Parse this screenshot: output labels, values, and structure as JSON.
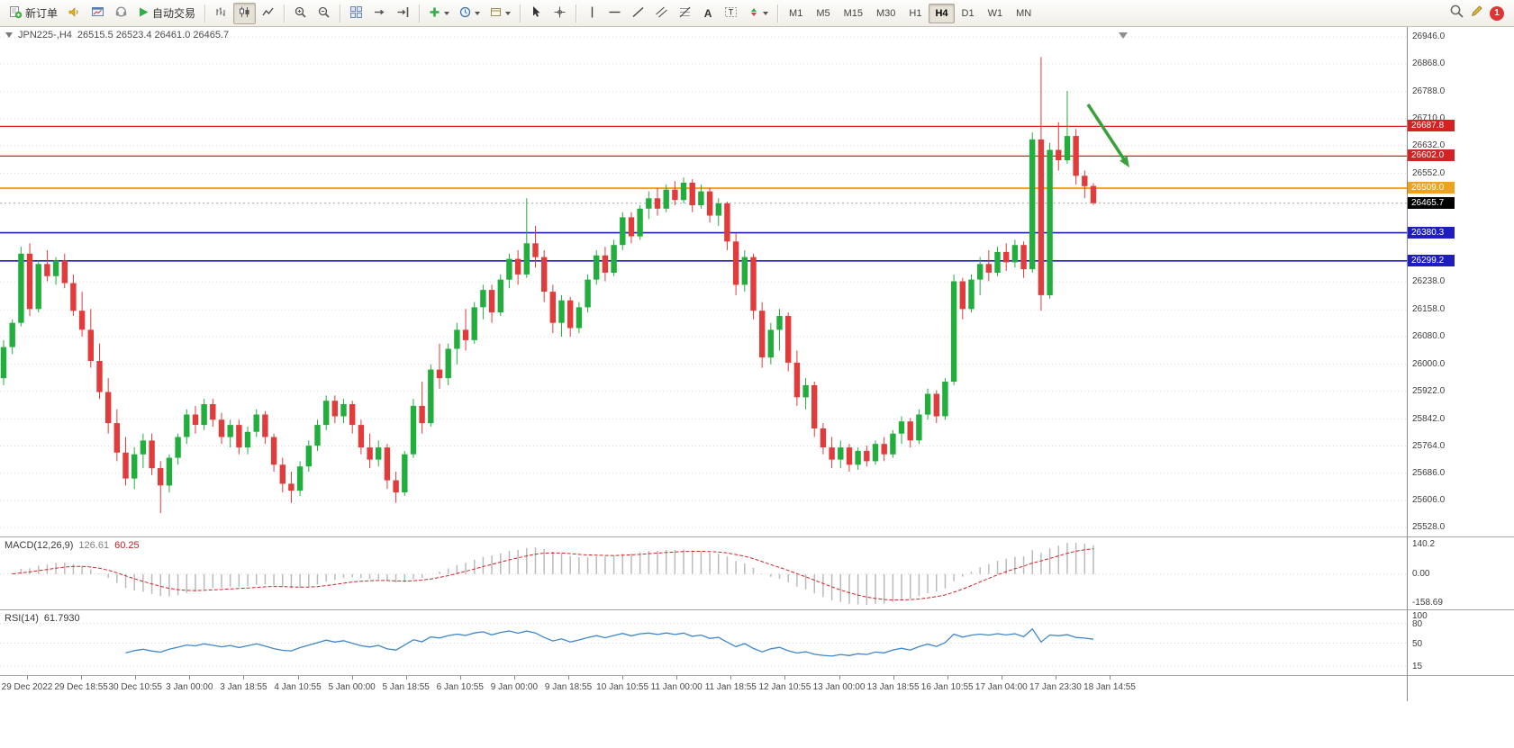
{
  "toolbar": {
    "new_order_label": "新订单",
    "auto_trading_label": "自动交易",
    "timeframes": [
      "M1",
      "M5",
      "M15",
      "M30",
      "H1",
      "H4",
      "D1",
      "W1",
      "MN"
    ],
    "active_timeframe": "H4",
    "notification_count": "1",
    "icon_names": [
      "new-order-icon",
      "alerts-icon",
      "market-watch-icon",
      "community-icon",
      "auto-trading-icon",
      "bar-chart-icon",
      "candlestick-icon",
      "line-chart-icon",
      "zoom-in-icon",
      "zoom-out-icon",
      "tile-windows-icon",
      "auto-scroll-icon",
      "chart-shift-icon",
      "indicators-icon",
      "periods-icon",
      "templates-icon",
      "cursor-icon",
      "crosshair-icon",
      "vertical-line-icon",
      "horizontal-line-icon",
      "trendline-icon",
      "channel-icon",
      "fibonacci-icon",
      "text-icon",
      "text-label-icon",
      "arrows-icon",
      "search-icon",
      "pencil-icon"
    ]
  },
  "chart": {
    "title_symbol": "JPN225-,H4",
    "title_ohlc": "26515.5 26523.4 26461.0 26465.7"
  },
  "macd": {
    "title": "MACD(12,26,9)",
    "value_main": "126.61",
    "value_signal": "60.25",
    "axis": [
      "140.2",
      "0.00",
      "-158.69"
    ]
  },
  "rsi": {
    "title": "RSI(14)",
    "value": "61.7930",
    "axis_values": [
      100,
      80,
      50,
      15
    ]
  },
  "colors": {
    "up": "#22ae3c",
    "down": "#e23b3b",
    "level_red": "#d42121",
    "level_orange": "#f0a11e",
    "level_blue": "#1d1dc0",
    "current_tag": "#000000",
    "macd_bars": "#bbbbbb",
    "macd_signal": "#d42222",
    "rsi_line": "#3f87c9",
    "arrow": "#3aa03a",
    "grid": "#dadada"
  },
  "chart_data": {
    "type": "candlestick",
    "symbol": "JPN225-",
    "timeframe": "H4",
    "current_bar": {
      "open": 26515.5,
      "high": 26523.4,
      "low": 26461.0,
      "close": 26465.7
    },
    "current_price": 26465.7,
    "y_ticks": [
      26946.0,
      26868.0,
      26788.0,
      26710.0,
      26632.0,
      26552.0,
      26238.0,
      26158.0,
      26080.0,
      26000.0,
      25922.0,
      25842.0,
      25764.0,
      25686.0,
      25606.0,
      25528.0
    ],
    "levels": [
      {
        "price": 26687.8,
        "color": "#d42121",
        "width": 1.2
      },
      {
        "price": 26602.0,
        "color": "#d42121",
        "width": 1.2
      },
      {
        "price": 26509.0,
        "color": "#f0a11e",
        "width": 2
      },
      {
        "price": 26380.3,
        "color": "#1d1dc0",
        "width": 1.6
      },
      {
        "price": 26299.2,
        "color": "#1d1dc0",
        "width": 1.6
      }
    ],
    "x_labels": [
      "29 Dec 2022",
      "29 Dec 18:55",
      "30 Dec 10:55",
      "3 Jan 00:00",
      "3 Jan 18:55",
      "4 Jan 10:55",
      "5 Jan 00:00",
      "5 Jan 18:55",
      "6 Jan 10:55",
      "9 Jan 00:00",
      "9 Jan 18:55",
      "10 Jan 10:55",
      "11 Jan 00:00",
      "11 Jan 18:55",
      "12 Jan 10:55",
      "13 Jan 00:00",
      "13 Jan 18:55",
      "16 Jan 10:55",
      "17 Jan 04:00",
      "17 Jan 23:30",
      "18 Jan 14:55"
    ],
    "candles": [
      [
        25960,
        26070,
        25940,
        26050
      ],
      [
        26050,
        26130,
        26030,
        26120
      ],
      [
        26120,
        26340,
        26110,
        26320
      ],
      [
        26320,
        26350,
        26140,
        26160
      ],
      [
        26160,
        26300,
        26150,
        26290
      ],
      [
        26290,
        26330,
        26240,
        26255
      ],
      [
        26255,
        26310,
        26230,
        26300
      ],
      [
        26300,
        26320,
        26220,
        26235
      ],
      [
        26235,
        26260,
        26140,
        26155
      ],
      [
        26155,
        26210,
        26080,
        26100
      ],
      [
        26100,
        26160,
        25990,
        26010
      ],
      [
        26010,
        26060,
        25900,
        25920
      ],
      [
        25920,
        25960,
        25800,
        25830
      ],
      [
        25830,
        25870,
        25720,
        25745
      ],
      [
        25745,
        25790,
        25650,
        25670
      ],
      [
        25670,
        25760,
        25640,
        25740
      ],
      [
        25740,
        25800,
        25700,
        25780
      ],
      [
        25780,
        25800,
        25680,
        25700
      ],
      [
        25700,
        25720,
        25570,
        25650
      ],
      [
        25650,
        25740,
        25630,
        25730
      ],
      [
        25730,
        25800,
        25710,
        25790
      ],
      [
        25790,
        25870,
        25770,
        25855
      ],
      [
        25855,
        25880,
        25800,
        25825
      ],
      [
        25825,
        25900,
        25810,
        25885
      ],
      [
        25885,
        25900,
        25820,
        25840
      ],
      [
        25840,
        25860,
        25770,
        25790
      ],
      [
        25790,
        25840,
        25760,
        25825
      ],
      [
        25825,
        25840,
        25740,
        25760
      ],
      [
        25760,
        25820,
        25740,
        25805
      ],
      [
        25805,
        25870,
        25790,
        25855
      ],
      [
        25855,
        25865,
        25770,
        25790
      ],
      [
        25790,
        25800,
        25690,
        25710
      ],
      [
        25710,
        25730,
        25630,
        25655
      ],
      [
        25655,
        25690,
        25600,
        25635
      ],
      [
        25635,
        25720,
        25620,
        25705
      ],
      [
        25705,
        25780,
        25690,
        25765
      ],
      [
        25765,
        25840,
        25750,
        25825
      ],
      [
        25825,
        25910,
        25810,
        25895
      ],
      [
        25895,
        25910,
        25830,
        25850
      ],
      [
        25850,
        25900,
        25830,
        25885
      ],
      [
        25885,
        25895,
        25800,
        25825
      ],
      [
        25825,
        25840,
        25740,
        25760
      ],
      [
        25760,
        25800,
        25700,
        25725
      ],
      [
        25725,
        25780,
        25705,
        25760
      ],
      [
        25760,
        25770,
        25640,
        25665
      ],
      [
        25665,
        25690,
        25600,
        25630
      ],
      [
        25630,
        25750,
        25620,
        25740
      ],
      [
        25740,
        25900,
        25730,
        25880
      ],
      [
        25880,
        25950,
        25800,
        25830
      ],
      [
        25830,
        26000,
        25820,
        25985
      ],
      [
        25985,
        26060,
        25930,
        25960
      ],
      [
        25960,
        26060,
        25940,
        26045
      ],
      [
        26045,
        26120,
        26000,
        26100
      ],
      [
        26100,
        26160,
        26040,
        26070
      ],
      [
        26070,
        26180,
        26060,
        26165
      ],
      [
        26165,
        26230,
        26130,
        26215
      ],
      [
        26215,
        26230,
        26120,
        26150
      ],
      [
        26150,
        26260,
        26140,
        26245
      ],
      [
        26245,
        26320,
        26220,
        26305
      ],
      [
        26305,
        26330,
        26230,
        26260
      ],
      [
        26260,
        26480,
        26250,
        26350
      ],
      [
        26350,
        26400,
        26280,
        26310
      ],
      [
        26310,
        26330,
        26180,
        26210
      ],
      [
        26210,
        26230,
        26090,
        26120
      ],
      [
        26120,
        26200,
        26080,
        26185
      ],
      [
        26185,
        26195,
        26080,
        26105
      ],
      [
        26105,
        26180,
        26090,
        26165
      ],
      [
        26165,
        26260,
        26150,
        26245
      ],
      [
        26245,
        26330,
        26230,
        26315
      ],
      [
        26315,
        26340,
        26240,
        26265
      ],
      [
        26265,
        26360,
        26255,
        26345
      ],
      [
        26345,
        26440,
        26330,
        26425
      ],
      [
        26425,
        26440,
        26350,
        26370
      ],
      [
        26370,
        26460,
        26360,
        26450
      ],
      [
        26450,
        26500,
        26420,
        26480
      ],
      [
        26480,
        26510,
        26430,
        26450
      ],
      [
        26450,
        26520,
        26440,
        26505
      ],
      [
        26505,
        26530,
        26460,
        26475
      ],
      [
        26475,
        26540,
        26465,
        26525
      ],
      [
        26525,
        26535,
        26440,
        26460
      ],
      [
        26460,
        26520,
        26450,
        26500
      ],
      [
        26500,
        26510,
        26410,
        26430
      ],
      [
        26430,
        26480,
        26400,
        26465
      ],
      [
        26465,
        26470,
        26330,
        26355
      ],
      [
        26355,
        26380,
        26200,
        26230
      ],
      [
        26230,
        26330,
        26210,
        26310
      ],
      [
        26310,
        26320,
        26130,
        26155
      ],
      [
        26155,
        26180,
        25990,
        26020
      ],
      [
        26020,
        26120,
        26000,
        26100
      ],
      [
        26100,
        26160,
        26040,
        26140
      ],
      [
        26140,
        26150,
        25980,
        26005
      ],
      [
        26005,
        26040,
        25880,
        25905
      ],
      [
        25905,
        25960,
        25870,
        25940
      ],
      [
        25940,
        25950,
        25790,
        25815
      ],
      [
        25815,
        25830,
        25740,
        25760
      ],
      [
        25760,
        25790,
        25700,
        25725
      ],
      [
        25725,
        25780,
        25700,
        25760
      ],
      [
        25760,
        25770,
        25690,
        25710
      ],
      [
        25710,
        25760,
        25695,
        25750
      ],
      [
        25750,
        25765,
        25705,
        25720
      ],
      [
        25720,
        25780,
        25710,
        25770
      ],
      [
        25770,
        25790,
        25720,
        25740
      ],
      [
        25740,
        25810,
        25730,
        25800
      ],
      [
        25800,
        25850,
        25770,
        25835
      ],
      [
        25835,
        25845,
        25760,
        25780
      ],
      [
        25780,
        25870,
        25770,
        25855
      ],
      [
        25855,
        25930,
        25840,
        25915
      ],
      [
        25915,
        25925,
        25830,
        25850
      ],
      [
        25850,
        25960,
        25840,
        25950
      ],
      [
        25950,
        26260,
        25940,
        26240
      ],
      [
        26240,
        26250,
        26130,
        26160
      ],
      [
        26160,
        26260,
        26150,
        26245
      ],
      [
        26245,
        26310,
        26200,
        26290
      ],
      [
        26290,
        26330,
        26240,
        26265
      ],
      [
        26265,
        26340,
        26255,
        26325
      ],
      [
        26325,
        26350,
        26270,
        26295
      ],
      [
        26295,
        26360,
        26280,
        26345
      ],
      [
        26345,
        26355,
        26250,
        26275
      ],
      [
        26275,
        26670,
        26265,
        26650
      ],
      [
        26650,
        26888,
        26155,
        26200
      ],
      [
        26200,
        26640,
        26190,
        26620
      ],
      [
        26620,
        26700,
        26560,
        26590
      ],
      [
        26590,
        26790,
        26580,
        26660
      ],
      [
        26660,
        26680,
        26520,
        26545
      ],
      [
        26545,
        26560,
        26480,
        26515
      ],
      [
        26515.5,
        26523.4,
        26461.0,
        26465.7
      ]
    ],
    "indicators": [
      {
        "name": "MACD",
        "params": "12,26,9",
        "values_shown": [
          126.61,
          60.25
        ],
        "axis_ticks": [
          140.2,
          0.0,
          -158.69
        ]
      },
      {
        "name": "RSI",
        "params": "14",
        "value_shown": 61.793,
        "axis_ticks": [
          100,
          80,
          50,
          15
        ]
      }
    ],
    "annotation": {
      "type": "arrow",
      "direction": "down-right",
      "color": "green"
    }
  }
}
